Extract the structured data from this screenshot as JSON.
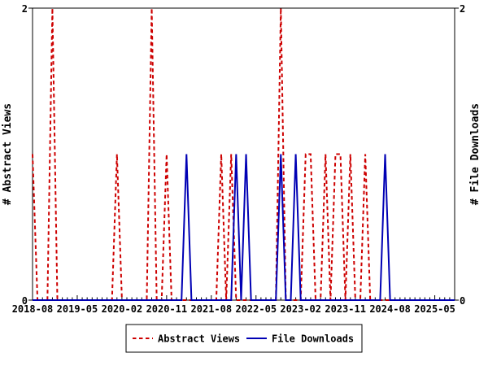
{
  "chart_data": {
    "type": "line",
    "title": "",
    "ylabel_left": "# Abstract Views",
    "ylabel_right": "# File Downloads",
    "ylim": [
      0,
      2
    ],
    "y_tick_labels": [
      "0",
      "2"
    ],
    "grid": false,
    "x_axis": {
      "start": "2018-08",
      "end": "2025-09",
      "minor_tick_interval_months": 1,
      "major_tick_interval_months": 9,
      "tick_labels": [
        "2018-08",
        "2019-05",
        "2020-02",
        "2020-11",
        "2021-08",
        "2022-05",
        "2023-02",
        "2023-11",
        "2024-08",
        "2025-05"
      ]
    },
    "series": [
      {
        "name": "Abstract Views",
        "axis": "left",
        "color": "#cd0000",
        "line_style": "dashed",
        "baseline_value": 0,
        "nonzero_points": {
          "2018-08": 1,
          "2018-12": 2,
          "2020-01": 1,
          "2020-08": 2,
          "2020-11": 1,
          "2021-10": 1,
          "2021-12": 1,
          "2022-10": 2,
          "2023-03": 1,
          "2023-04": 1,
          "2023-07": 1,
          "2023-09": 1,
          "2023-10": 1,
          "2023-12": 1,
          "2024-03": 1
        }
      },
      {
        "name": "File Downloads",
        "axis": "right",
        "color": "#0000b4",
        "line_style": "solid",
        "baseline_value": 0,
        "nonzero_points": {
          "2021-03": 1,
          "2022-01": 1,
          "2022-03": 1,
          "2022-10": 1,
          "2023-01": 1,
          "2024-07": 1
        }
      }
    ],
    "legend": {
      "position": "bottom-center",
      "entries": [
        "Abstract Views",
        "File Downloads"
      ]
    },
    "colors": {
      "border": "#000000",
      "background": "#ffffff",
      "abstract_views": "#cd0000",
      "file_downloads": "#0000b4"
    }
  }
}
